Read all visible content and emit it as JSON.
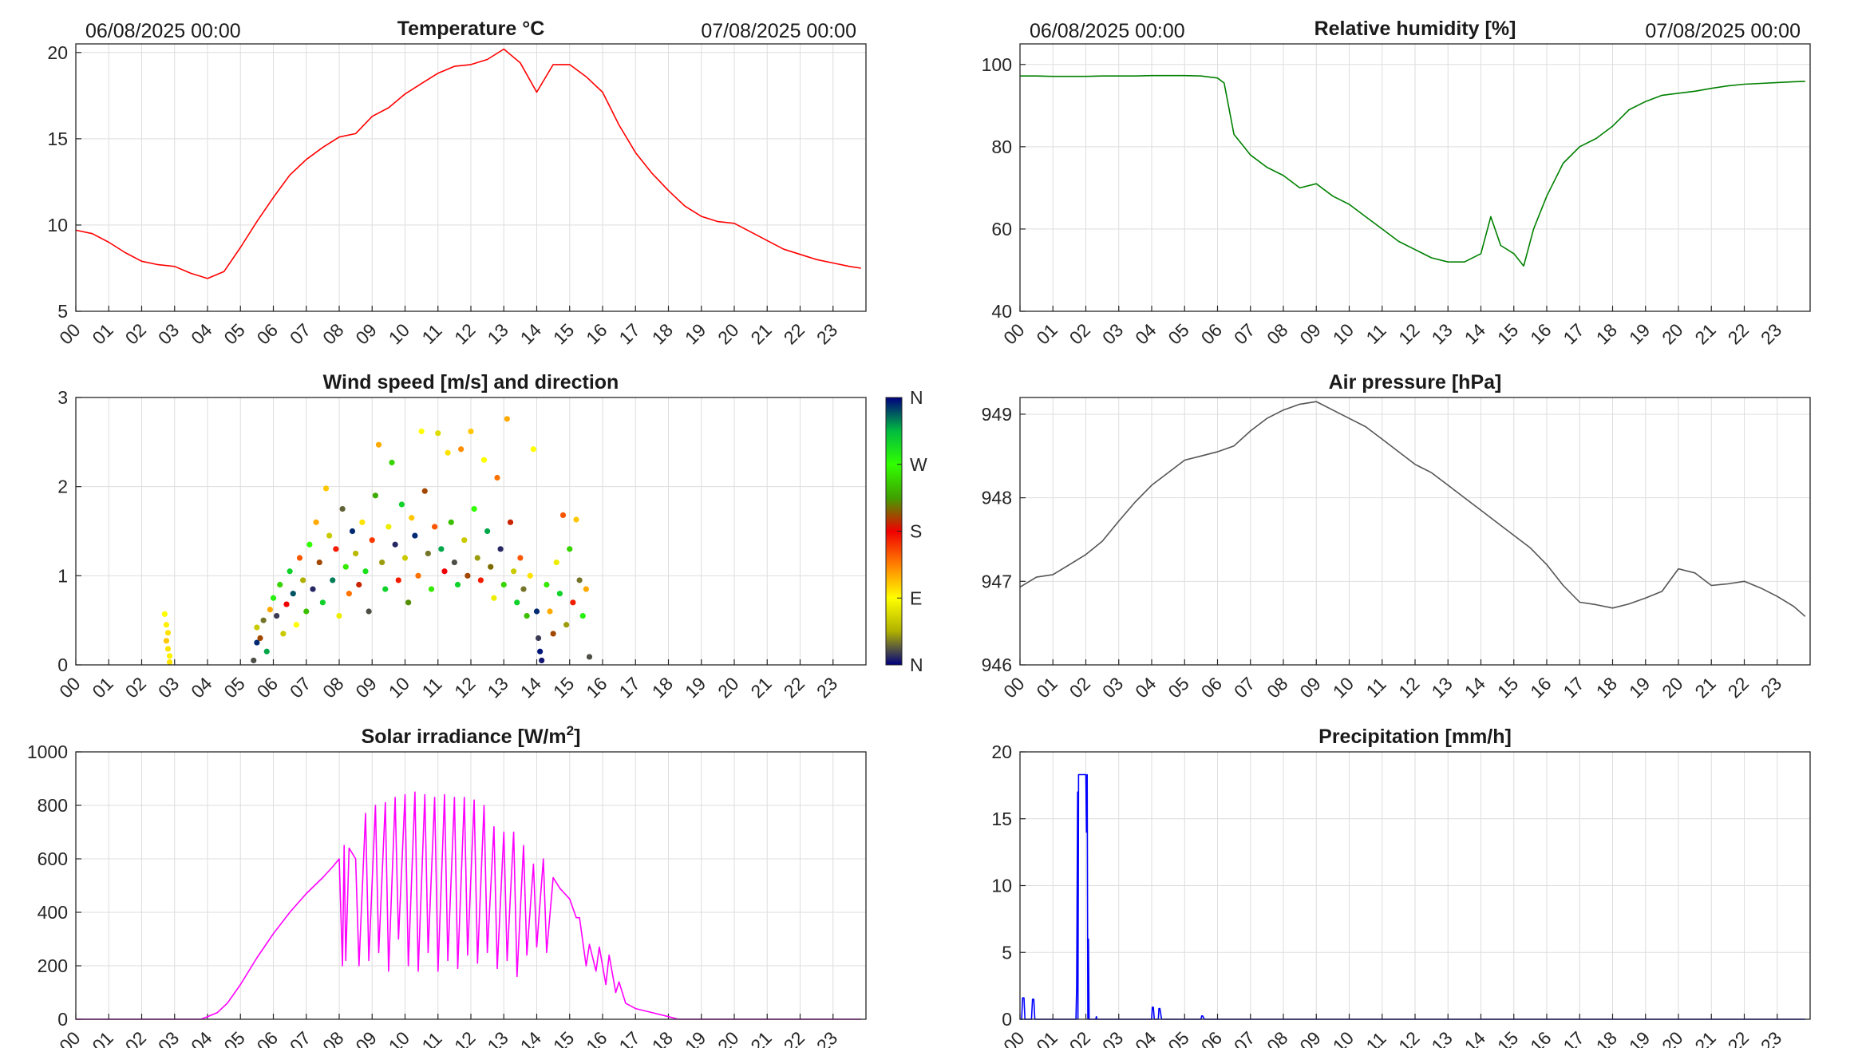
{
  "chart_data": [
    {
      "id": "temperature",
      "type": "line",
      "title": "Temperature °C",
      "date_start": "06/08/2025 00:00",
      "date_end": "07/08/2025 00:00",
      "color": "#ff0000",
      "xlabel": "",
      "ylabel": "",
      "xlim": [
        0,
        24
      ],
      "ylim": [
        5,
        20.5
      ],
      "yticks": [
        "5",
        "10",
        "15",
        "20"
      ],
      "ytick_values": [
        5,
        10,
        15,
        20
      ],
      "xtick_labels": [
        "00",
        "01",
        "02",
        "03",
        "04",
        "05",
        "06",
        "07",
        "08",
        "09",
        "10",
        "11",
        "12",
        "13",
        "14",
        "15",
        "16",
        "17",
        "18",
        "19",
        "20",
        "21",
        "22",
        "23"
      ],
      "x": [
        0,
        0.5,
        1,
        1.5,
        2,
        2.5,
        3,
        3.5,
        4,
        4.5,
        5,
        5.5,
        6,
        6.5,
        7,
        7.5,
        8,
        8.5,
        9,
        9.5,
        10,
        10.5,
        11,
        11.5,
        12,
        12.5,
        13,
        13.5,
        14,
        14.5,
        15,
        15.5,
        16,
        16.5,
        17,
        17.5,
        18,
        18.5,
        19,
        19.5,
        20,
        20.5,
        21,
        21.5,
        22,
        22.5,
        23,
        23.5,
        23.85
      ],
      "y": [
        9.7,
        9.5,
        9.0,
        8.4,
        7.9,
        7.7,
        7.6,
        7.2,
        6.9,
        7.3,
        8.7,
        10.2,
        11.6,
        12.9,
        13.8,
        14.5,
        15.1,
        15.3,
        16.3,
        16.8,
        17.6,
        18.2,
        18.8,
        19.2,
        19.3,
        19.6,
        20.2,
        19.4,
        17.7,
        19.3,
        19.3,
        18.6,
        17.7,
        15.8,
        14.2,
        13.0,
        12.0,
        11.1,
        10.5,
        10.2,
        10.1,
        9.6,
        9.1,
        8.6,
        8.3,
        8.0,
        7.8,
        7.6,
        7.5
      ]
    },
    {
      "id": "humidity",
      "type": "line",
      "title": "Relative humidity [%]",
      "date_start": "06/08/2025 00:00",
      "date_end": "07/08/2025 00:00",
      "color": "#008000",
      "xlim": [
        0,
        24
      ],
      "ylim": [
        40,
        105
      ],
      "yticks": [
        "40",
        "60",
        "80",
        "100"
      ],
      "ytick_values": [
        40,
        60,
        80,
        100
      ],
      "xtick_labels": [
        "00",
        "01",
        "02",
        "03",
        "04",
        "05",
        "06",
        "07",
        "08",
        "09",
        "10",
        "11",
        "12",
        "13",
        "14",
        "15",
        "16",
        "17",
        "18",
        "19",
        "20",
        "21",
        "22",
        "23"
      ],
      "x": [
        0,
        0.5,
        1,
        1.5,
        2,
        2.5,
        3,
        3.5,
        4,
        4.5,
        5,
        5.5,
        6,
        6.2,
        6.5,
        6.8,
        7,
        7.5,
        8,
        8.5,
        9,
        9.5,
        10,
        10.5,
        11,
        11.5,
        12,
        12.5,
        13,
        13.5,
        14,
        14.3,
        14.6,
        15,
        15.3,
        15.6,
        16,
        16.5,
        17,
        17.5,
        18,
        18.5,
        19,
        19.5,
        20,
        20.5,
        21,
        21.5,
        22,
        22.5,
        23,
        23.5,
        23.85
      ],
      "y": [
        97.2,
        97.2,
        97.1,
        97.1,
        97.1,
        97.2,
        97.2,
        97.2,
        97.3,
        97.3,
        97.3,
        97.2,
        96.7,
        95.5,
        83,
        80,
        78,
        75,
        73,
        70,
        71,
        68,
        66,
        63,
        60,
        57,
        55,
        53,
        52,
        52,
        54,
        63,
        56,
        54,
        51,
        60,
        68,
        76,
        80,
        82,
        85,
        89,
        91,
        92.5,
        93,
        93.5,
        94.2,
        94.8,
        95.2,
        95.4,
        95.6,
        95.8,
        95.9
      ]
    },
    {
      "id": "wind",
      "type": "scatter",
      "title": "Wind speed [m/s] and direction",
      "xlim": [
        0,
        24
      ],
      "ylim": [
        0,
        3
      ],
      "yticks": [
        "0",
        "1",
        "2",
        "3"
      ],
      "ytick_values": [
        0,
        1,
        2,
        3
      ],
      "xtick_labels": [
        "00",
        "01",
        "02",
        "03",
        "04",
        "05",
        "06",
        "07",
        "08",
        "09",
        "10",
        "11",
        "12",
        "13",
        "14",
        "15",
        "16",
        "17",
        "18",
        "19",
        "20",
        "21",
        "22",
        "23"
      ],
      "colorbar_labels": [
        "N",
        "W",
        "S",
        "E",
        "N"
      ],
      "colorbar_colors": [
        "#00007f",
        "#00bb40",
        "#30ff00",
        "#40a000",
        "#f00000",
        "#ff8000",
        "#ffff00",
        "#b0b000",
        "#00007f"
      ],
      "points": [
        [
          2.7,
          0.57,
          90
        ],
        [
          2.75,
          0.45,
          95
        ],
        [
          2.8,
          0.36,
          100
        ],
        [
          2.75,
          0.27,
          110
        ],
        [
          2.8,
          0.18,
          100
        ],
        [
          2.85,
          0.1,
          95
        ],
        [
          2.85,
          0.03,
          100
        ],
        [
          5.4,
          0.05,
          20
        ],
        [
          5.5,
          0.25,
          350
        ],
        [
          5.5,
          0.42,
          60
        ],
        [
          5.6,
          0.3,
          200
        ],
        [
          5.7,
          0.5,
          30
        ],
        [
          5.8,
          0.15,
          320
        ],
        [
          5.9,
          0.62,
          120
        ],
        [
          6,
          0.75,
          280
        ],
        [
          6.1,
          0.55,
          15
        ],
        [
          6.2,
          0.9,
          250
        ],
        [
          6.3,
          0.35,
          60
        ],
        [
          6.4,
          0.68,
          180
        ],
        [
          6.5,
          1.05,
          300
        ],
        [
          6.6,
          0.8,
          340
        ],
        [
          6.7,
          0.45,
          90
        ],
        [
          6.8,
          1.2,
          150
        ],
        [
          6.9,
          0.95,
          45
        ],
        [
          7,
          0.6,
          240
        ],
        [
          7.1,
          1.35,
          270
        ],
        [
          7.2,
          0.85,
          10
        ],
        [
          7.3,
          1.6,
          120
        ],
        [
          7.4,
          1.15,
          200
        ],
        [
          7.5,
          0.7,
          300
        ],
        [
          7.6,
          1.98,
          110
        ],
        [
          7.7,
          1.45,
          60
        ],
        [
          7.8,
          0.95,
          330
        ],
        [
          7.9,
          1.3,
          170
        ],
        [
          8,
          0.55,
          80
        ],
        [
          8.1,
          1.75,
          25
        ],
        [
          8.2,
          1.1,
          260
        ],
        [
          8.3,
          0.8,
          140
        ],
        [
          8.4,
          1.5,
          350
        ],
        [
          8.5,
          1.25,
          50
        ],
        [
          8.6,
          0.9,
          190
        ],
        [
          8.7,
          1.6,
          100
        ],
        [
          8.8,
          1.05,
          290
        ],
        [
          8.9,
          0.6,
          20
        ],
        [
          9,
          1.4,
          160
        ],
        [
          9.1,
          1.9,
          230
        ],
        [
          9.2,
          2.47,
          120
        ],
        [
          9.3,
          1.15,
          40
        ],
        [
          9.4,
          0.85,
          300
        ],
        [
          9.5,
          1.55,
          80
        ],
        [
          9.6,
          2.27,
          250
        ],
        [
          9.7,
          1.35,
          10
        ],
        [
          9.8,
          0.95,
          170
        ],
        [
          9.9,
          1.8,
          300
        ],
        [
          10,
          1.2,
          60
        ],
        [
          10.1,
          0.7,
          220
        ],
        [
          10.2,
          1.65,
          110
        ],
        [
          10.3,
          1.45,
          350
        ],
        [
          10.4,
          1.0,
          140
        ],
        [
          10.5,
          2.62,
          90
        ],
        [
          10.6,
          1.95,
          200
        ],
        [
          10.7,
          1.25,
          30
        ],
        [
          10.8,
          0.85,
          260
        ],
        [
          10.9,
          1.55,
          150
        ],
        [
          11,
          2.6,
          70
        ],
        [
          11.1,
          1.3,
          320
        ],
        [
          11.2,
          1.05,
          180
        ],
        [
          11.3,
          2.38,
          100
        ],
        [
          11.4,
          1.6,
          240
        ],
        [
          11.5,
          1.15,
          20
        ],
        [
          11.6,
          0.9,
          300
        ],
        [
          11.7,
          2.42,
          130
        ],
        [
          11.8,
          1.4,
          60
        ],
        [
          11.9,
          1.0,
          200
        ],
        [
          12,
          2.62,
          110
        ],
        [
          12.1,
          1.75,
          270
        ],
        [
          12.2,
          1.2,
          40
        ],
        [
          12.3,
          0.95,
          170
        ],
        [
          12.4,
          2.3,
          90
        ],
        [
          12.5,
          1.5,
          320
        ],
        [
          12.6,
          1.1,
          210
        ],
        [
          12.7,
          0.75,
          80
        ],
        [
          12.8,
          2.1,
          140
        ],
        [
          12.9,
          1.3,
          10
        ],
        [
          13,
          0.9,
          250
        ],
        [
          13.1,
          2.76,
          120
        ],
        [
          13.2,
          1.6,
          190
        ],
        [
          13.3,
          1.05,
          60
        ],
        [
          13.4,
          0.7,
          300
        ],
        [
          13.5,
          1.2,
          150
        ],
        [
          13.6,
          0.85,
          30
        ],
        [
          13.7,
          0.55,
          240
        ],
        [
          13.8,
          1.0,
          100
        ],
        [
          13.9,
          2.42,
          90
        ],
        [
          14,
          0.6,
          350
        ],
        [
          14.05,
          0.3,
          15
        ],
        [
          14.1,
          0.15,
          355
        ],
        [
          14.15,
          0.05,
          5
        ],
        [
          14.3,
          0.9,
          260
        ],
        [
          14.4,
          0.6,
          120
        ],
        [
          14.5,
          0.35,
          200
        ],
        [
          14.6,
          1.15,
          80
        ],
        [
          14.7,
          0.8,
          300
        ],
        [
          14.8,
          1.68,
          150
        ],
        [
          14.9,
          0.45,
          40
        ],
        [
          15,
          1.3,
          250
        ],
        [
          15.1,
          0.7,
          170
        ],
        [
          15.2,
          1.63,
          110
        ],
        [
          15.3,
          0.95,
          30
        ],
        [
          15.4,
          0.55,
          280
        ],
        [
          15.5,
          0.85,
          120
        ],
        [
          15.6,
          0.09,
          20
        ]
      ]
    },
    {
      "id": "pressure",
      "type": "line",
      "title": "Air pressure [hPa]",
      "color": "#555555",
      "xlim": [
        0,
        24
      ],
      "ylim": [
        946,
        949.2
      ],
      "yticks": [
        "946",
        "947",
        "948",
        "949"
      ],
      "ytick_values": [
        946,
        947,
        948,
        949
      ],
      "xtick_labels": [
        "00",
        "01",
        "02",
        "03",
        "04",
        "05",
        "06",
        "07",
        "08",
        "09",
        "10",
        "11",
        "12",
        "13",
        "14",
        "15",
        "16",
        "17",
        "18",
        "19",
        "20",
        "21",
        "22",
        "23"
      ],
      "x": [
        0,
        0.5,
        1,
        1.5,
        2,
        2.5,
        3,
        3.5,
        4,
        4.5,
        5,
        5.5,
        6,
        6.5,
        7,
        7.5,
        8,
        8.5,
        9,
        9.5,
        10,
        10.5,
        11,
        11.5,
        12,
        12.5,
        13,
        13.5,
        14,
        14.5,
        15,
        15.5,
        16,
        16.5,
        17,
        17.5,
        18,
        18.5,
        19,
        19.5,
        20,
        20.5,
        21,
        21.5,
        22,
        22.5,
        23,
        23.5,
        23.85
      ],
      "y": [
        946.93,
        947.05,
        947.08,
        947.2,
        947.32,
        947.48,
        947.72,
        947.95,
        948.15,
        948.3,
        948.45,
        948.5,
        948.55,
        948.62,
        948.8,
        948.95,
        949.05,
        949.12,
        949.15,
        949.05,
        948.95,
        948.85,
        948.7,
        948.55,
        948.4,
        948.3,
        948.15,
        948.0,
        947.85,
        947.7,
        947.55,
        947.4,
        947.2,
        946.95,
        946.75,
        946.72,
        946.68,
        946.73,
        946.8,
        946.88,
        947.15,
        947.1,
        946.95,
        946.97,
        947.0,
        946.92,
        946.82,
        946.7,
        946.58
      ]
    },
    {
      "id": "solar",
      "type": "line",
      "title": "Solar irradiance [W/m",
      "title_sup": "2",
      "title_tail": "]",
      "color": "#ff00ff",
      "xlim": [
        0,
        24
      ],
      "ylim": [
        0,
        1000
      ],
      "yticks": [
        "0",
        "200",
        "400",
        "600",
        "800",
        "1000"
      ],
      "ytick_values": [
        0,
        200,
        400,
        600,
        800,
        1000
      ],
      "xtick_labels": [
        "00",
        "01",
        "02",
        "03",
        "04",
        "05",
        "06",
        "07",
        "08",
        "09",
        "10",
        "11",
        "12",
        "13",
        "14",
        "15",
        "16",
        "17",
        "18",
        "19",
        "20",
        "21",
        "22",
        "23"
      ],
      "x": [
        0,
        3.8,
        4,
        4.3,
        4.6,
        5,
        5.5,
        6,
        6.5,
        7,
        7.5,
        7.8,
        8.0,
        8.1,
        8.15,
        8.2,
        8.3,
        8.5,
        8.6,
        8.8,
        8.9,
        9.1,
        9.2,
        9.4,
        9.5,
        9.7,
        9.8,
        10,
        10.1,
        10.3,
        10.4,
        10.6,
        10.7,
        10.9,
        11,
        11.2,
        11.3,
        11.5,
        11.6,
        11.8,
        11.9,
        12.1,
        12.2,
        12.4,
        12.5,
        12.7,
        12.8,
        13,
        13.1,
        13.3,
        13.4,
        13.6,
        13.7,
        13.9,
        14.0,
        14.2,
        14.3,
        14.5,
        14.7,
        15,
        15.2,
        15.3,
        15.5,
        15.6,
        15.8,
        15.9,
        16.1,
        16.2,
        16.4,
        16.5,
        16.7,
        17,
        17.5,
        18,
        18.3,
        18.5,
        19,
        20,
        21,
        22,
        23,
        23.85
      ],
      "y": [
        0,
        0,
        10,
        25,
        60,
        130,
        230,
        320,
        400,
        470,
        530,
        570,
        600,
        200,
        650,
        220,
        640,
        600,
        200,
        770,
        220,
        800,
        250,
        810,
        180,
        830,
        300,
        840,
        200,
        850,
        180,
        840,
        250,
        830,
        180,
        840,
        220,
        830,
        190,
        830,
        240,
        820,
        210,
        800,
        250,
        720,
        190,
        700,
        220,
        700,
        160,
        650,
        240,
        580,
        270,
        600,
        250,
        530,
        490,
        450,
        380,
        380,
        200,
        280,
        180,
        270,
        130,
        240,
        100,
        140,
        60,
        40,
        25,
        10,
        0,
        0,
        0,
        0,
        0,
        0,
        0,
        0
      ]
    },
    {
      "id": "precipitation",
      "type": "line",
      "title": "Precipitation [mm/h]",
      "color": "#0000ff",
      "xlim": [
        0,
        24
      ],
      "ylim": [
        0,
        20
      ],
      "yticks": [
        "0",
        "5",
        "10",
        "15",
        "20"
      ],
      "ytick_values": [
        0,
        5,
        10,
        15,
        20
      ],
      "xtick_labels": [
        "00",
        "01",
        "02",
        "03",
        "04",
        "05",
        "06",
        "07",
        "08",
        "09",
        "10",
        "11",
        "12",
        "13",
        "14",
        "15",
        "16",
        "17",
        "18",
        "19",
        "20",
        "21",
        "22",
        "23"
      ],
      "x": [
        0,
        0.05,
        0.08,
        0.12,
        0.15,
        0.3,
        0.35,
        0.38,
        0.42,
        0.45,
        1.7,
        1.72,
        1.75,
        1.76,
        1.78,
        1.8,
        2.0,
        2.02,
        2.04,
        2.06,
        2.08,
        2.1,
        2.3,
        2.32,
        2.34,
        2.4,
        4.0,
        4.02,
        4.05,
        4.08,
        4.2,
        4.22,
        4.25,
        4.3,
        5.5,
        5.52,
        5.55,
        5.6,
        23.85
      ],
      "y": [
        0,
        0,
        1.6,
        1.6,
        0,
        0,
        0,
        1.5,
        1.5,
        0,
        0,
        2.4,
        17,
        0,
        18.3,
        18.3,
        18.3,
        14,
        18.3,
        0,
        6,
        0,
        0,
        0.2,
        0,
        0,
        0,
        0.9,
        0.9,
        0,
        0,
        0.8,
        0.8,
        0,
        0,
        0.25,
        0.25,
        0,
        0
      ]
    }
  ]
}
